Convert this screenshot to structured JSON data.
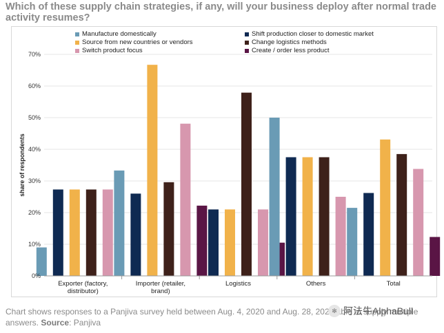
{
  "title": "Which of these supply chain strategies, if any, will your business deploy after normal trade activity resumes?",
  "caption": {
    "text": "Chart shows responses to a Panjiva survey held between Aug. 4, 2020 and Aug. 28, 2020 able to supply multiple answers.",
    "source_label": "Source",
    "source_value": ": Panjiva"
  },
  "watermark": {
    "text": "阿法牛AlphaBull",
    "icon": "wechat-icon"
  },
  "chart_data": {
    "type": "bar",
    "title": "",
    "ylabel": "share of respondents",
    "xlabel": "",
    "ylim": [
      0,
      70
    ],
    "yticks": [
      0,
      10,
      20,
      30,
      40,
      50,
      60,
      70
    ],
    "ytick_labels": [
      "0%",
      "10%",
      "20%",
      "30%",
      "40%",
      "50%",
      "60%",
      "70%"
    ],
    "categories": [
      [
        "Exporter (factory,",
        "distributor)"
      ],
      [
        "Importer (retailer,",
        "brand)"
      ],
      [
        "Logistics"
      ],
      [
        "Others"
      ],
      [
        "Total"
      ]
    ],
    "series": [
      {
        "name": "Manufacture domestically",
        "color": "#6a9bb5",
        "values": [
          9,
          33.3,
          0,
          50,
          21.5
        ]
      },
      {
        "name": "Shift production closer to domestic market",
        "color": "#0f2a52",
        "values": [
          27.3,
          26,
          21,
          37.5,
          26.2
        ]
      },
      {
        "name": "Source from new countries or vendors",
        "color": "#f1b24a",
        "values": [
          27.3,
          66.7,
          21,
          37.5,
          43.1
        ]
      },
      {
        "name": "Change logistics methods",
        "color": "#3e211a",
        "values": [
          27.3,
          29.6,
          57.9,
          37.5,
          38.5
        ]
      },
      {
        "name": "Switch product focus",
        "color": "#d797ae",
        "values": [
          27.3,
          48.1,
          21,
          25,
          33.8
        ]
      },
      {
        "name": "Create / order less product",
        "color": "#5a1545",
        "values": [
          0,
          22.2,
          10.5,
          0,
          12.3
        ]
      }
    ],
    "legend_position": "top"
  }
}
